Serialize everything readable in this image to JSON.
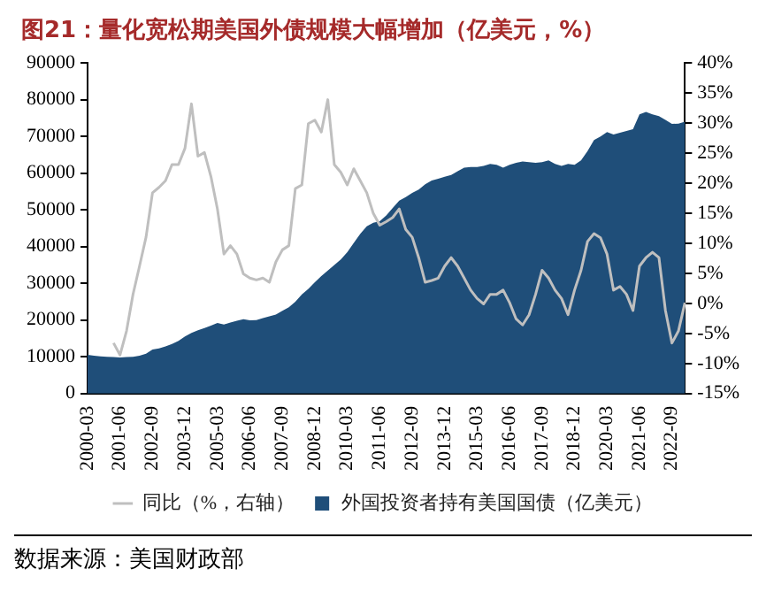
{
  "chart_data": {
    "type": "area",
    "title": "图21：量化宽松期美国外债规模大幅增加（亿美元，%）",
    "categories": [
      "2000-03",
      null,
      null,
      null,
      null,
      "2001-06",
      null,
      null,
      null,
      null,
      "2002-09",
      null,
      null,
      null,
      null,
      "2003-12",
      null,
      null,
      null,
      null,
      "2005-03",
      null,
      null,
      null,
      null,
      "2006-06",
      null,
      null,
      null,
      null,
      "2007-09",
      null,
      null,
      null,
      null,
      "2008-12",
      null,
      null,
      null,
      null,
      "2010-03",
      null,
      null,
      null,
      null,
      "2011-06",
      null,
      null,
      null,
      null,
      "2012-09",
      null,
      null,
      null,
      null,
      "2013-12",
      null,
      null,
      null,
      null,
      "2015-03",
      null,
      null,
      null,
      null,
      "2016-06",
      null,
      null,
      null,
      null,
      "2017-09",
      null,
      null,
      null,
      null,
      "2018-12",
      null,
      null,
      null,
      null,
      "2020-03",
      null,
      null,
      null,
      null,
      "2021-06",
      null,
      null,
      null,
      null,
      "2022-09",
      null,
      null
    ],
    "series": [
      {
        "name": "外国投资者持有美国国债（亿美元）",
        "type": "area",
        "color": "#1f4e79",
        "values": [
          10500,
          10300,
          10100,
          10000,
          9900,
          9800,
          9900,
          10000,
          10300,
          10800,
          12000,
          12300,
          12800,
          13500,
          14300,
          15500,
          16500,
          17200,
          17800,
          18500,
          19200,
          18800,
          19300,
          19800,
          20200,
          19900,
          20000,
          20500,
          21000,
          21500,
          22500,
          23500,
          25000,
          27000,
          28500,
          30300,
          32000,
          33500,
          35000,
          36500,
          38500,
          41000,
          43500,
          45500,
          46500,
          46900,
          48500,
          50500,
          52500,
          53500,
          54600,
          55500,
          57000,
          58000,
          58500,
          59000,
          59500,
          60500,
          61500,
          61700,
          61700,
          62000,
          62500,
          62300,
          61500,
          62300,
          62800,
          63200,
          63000,
          62800,
          63000,
          63500,
          62500,
          62000,
          62500,
          62300,
          63500,
          66000,
          69000,
          70000,
          71200,
          70500,
          71000,
          71500,
          72000,
          76000,
          76700,
          76000,
          75500,
          74500,
          73400,
          73500,
          74000
        ]
      },
      {
        "name": "同比（%，右轴）",
        "type": "line",
        "axis": "y2",
        "color": "#bfbfbf",
        "values": [
          null,
          null,
          null,
          null,
          -6.6,
          -8.6,
          -4.6,
          1.5,
          6.2,
          11,
          18.4,
          19.3,
          20.4,
          23.1,
          23.1,
          25.8,
          33.2,
          24.5,
          25.1,
          21.1,
          15.7,
          8.2,
          9.6,
          8.2,
          4.9,
          4.2,
          3.9,
          4.2,
          3.5,
          6.9,
          8.9,
          9.6,
          19.1,
          19.7,
          29.9,
          30.5,
          28.5,
          33.9,
          23.1,
          21.8,
          19.7,
          22.4,
          20.4,
          18.4,
          15,
          13,
          13.6,
          14.3,
          15.7,
          12.3,
          11,
          7.6,
          3.5,
          3.8,
          4.2,
          6.2,
          7.6,
          6.2,
          4.2,
          2.2,
          0.8,
          -0.1,
          1.5,
          1.5,
          2.2,
          0.1,
          -2.6,
          -3.6,
          -1.9,
          1.5,
          5.5,
          4.2,
          2.2,
          0.8,
          -1.9,
          2.2,
          5.5,
          10.3,
          11.6,
          10.9,
          8.2,
          2.2,
          2.8,
          1.5,
          -1.2,
          6.2,
          7.6,
          8.5,
          7.6,
          -1.2,
          -6.6,
          -4.6,
          0.1
        ]
      }
    ],
    "ylim": [
      0,
      90000
    ],
    "yticks": [
      0,
      10000,
      20000,
      30000,
      40000,
      50000,
      60000,
      70000,
      80000,
      90000
    ],
    "y2lim": [
      -15,
      40
    ],
    "y2ticks": [
      {
        "value": -15,
        "label": "-15%"
      },
      {
        "value": -10,
        "label": "-10%"
      },
      {
        "value": -5,
        "label": "-5%"
      },
      {
        "value": 0,
        "label": "0%"
      },
      {
        "value": 5,
        "label": "5%"
      },
      {
        "value": 10,
        "label": "10%"
      },
      {
        "value": 15,
        "label": "15%"
      },
      {
        "value": 20,
        "label": "20%"
      },
      {
        "value": 25,
        "label": "25%"
      },
      {
        "value": 30,
        "label": "30%"
      },
      {
        "value": 35,
        "label": "35%"
      },
      {
        "value": 40,
        "label": "40%"
      }
    ],
    "grid": false,
    "legend": "bottom",
    "annotations": [
      "数据来源：美国财政部"
    ]
  }
}
